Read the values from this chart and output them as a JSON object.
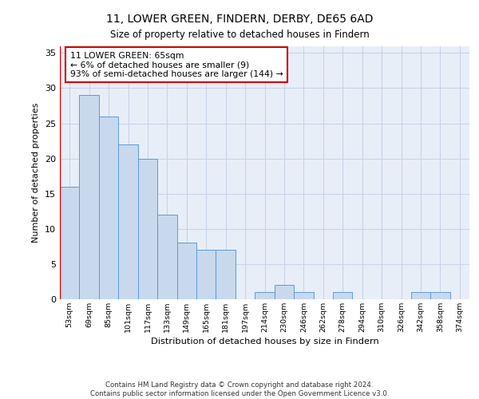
{
  "title1": "11, LOWER GREEN, FINDERN, DERBY, DE65 6AD",
  "title2": "Size of property relative to detached houses in Findern",
  "xlabel": "Distribution of detached houses by size in Findern",
  "ylabel": "Number of detached properties",
  "categories": [
    "53sqm",
    "69sqm",
    "85sqm",
    "101sqm",
    "117sqm",
    "133sqm",
    "149sqm",
    "165sqm",
    "181sqm",
    "197sqm",
    "214sqm",
    "230sqm",
    "246sqm",
    "262sqm",
    "278sqm",
    "294sqm",
    "310sqm",
    "326sqm",
    "342sqm",
    "358sqm",
    "374sqm"
  ],
  "values": [
    16,
    29,
    26,
    22,
    20,
    12,
    8,
    7,
    7,
    0,
    1,
    2,
    1,
    0,
    1,
    0,
    0,
    0,
    1,
    1,
    0
  ],
  "bar_color": "#c8d9ee",
  "bar_edge_color": "#5b9bd5",
  "bar_edge_width": 0.7,
  "annotation_box_text": "11 LOWER GREEN: 65sqm\n← 6% of detached houses are smaller (9)\n93% of semi-detached houses are larger (144) →",
  "annotation_box_color": "#ffffff",
  "annotation_box_edge_color": "#cc0000",
  "grid_color": "#c8d4e8",
  "background_color": "#e8eef8",
  "ylim": [
    0,
    36
  ],
  "yticks": [
    0,
    5,
    10,
    15,
    20,
    25,
    30,
    35
  ],
  "footer_line1": "Contains HM Land Registry data © Crown copyright and database right 2024.",
  "footer_line2": "Contains public sector information licensed under the Open Government Licence v3.0."
}
